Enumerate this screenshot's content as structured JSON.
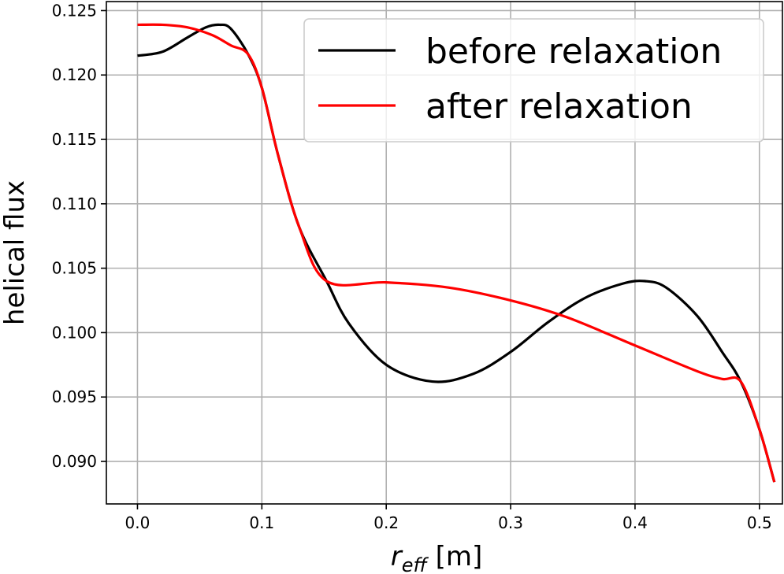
{
  "chart_data": {
    "type": "line",
    "xlabel": {
      "main": "r",
      "sub": "eff",
      "unit": " [m]"
    },
    "ylabel": "helical flux",
    "xlim": [
      -0.025,
      0.5185
    ],
    "ylim": [
      0.0867,
      0.1257
    ],
    "xticks": [
      0.0,
      0.1,
      0.2,
      0.3,
      0.4,
      0.5
    ],
    "xtick_labels": [
      "0.0",
      "0.1",
      "0.2",
      "0.3",
      "0.4",
      "0.5"
    ],
    "yticks": [
      0.09,
      0.095,
      0.1,
      0.105,
      0.11,
      0.115,
      0.12,
      0.125
    ],
    "ytick_labels": [
      "0.090",
      "0.095",
      "0.100",
      "0.105",
      "0.110",
      "0.115",
      "0.120",
      "0.125"
    ],
    "grid": true,
    "legend_position": "top-right",
    "series": [
      {
        "name": "before relaxation",
        "color": "#000000",
        "x": [
          0.0,
          0.02,
          0.04,
          0.055,
          0.066,
          0.075,
          0.089,
          0.1,
          0.113,
          0.13,
          0.152,
          0.17,
          0.2,
          0.237,
          0.27,
          0.3,
          0.33,
          0.36,
          0.39,
          0.408,
          0.425,
          0.45,
          0.47,
          0.485,
          0.5,
          0.512
        ],
        "y": [
          0.1215,
          0.1218,
          0.1229,
          0.1237,
          0.1239,
          0.1236,
          0.1216,
          0.119,
          0.1138,
          0.1082,
          0.104,
          0.1007,
          0.0975,
          0.0962,
          0.0968,
          0.0985,
          0.1008,
          0.1027,
          0.1038,
          0.104,
          0.1035,
          0.1013,
          0.0985,
          0.0962,
          0.0925,
          0.0884
        ]
      },
      {
        "name": "after relaxation",
        "color": "#ff0000",
        "x": [
          0.0,
          0.02,
          0.04,
          0.06,
          0.075,
          0.089,
          0.1,
          0.113,
          0.13,
          0.152,
          0.2,
          0.25,
          0.3,
          0.345,
          0.4,
          0.45,
          0.47,
          0.485,
          0.5,
          0.512
        ],
        "y": [
          0.1239,
          0.1239,
          0.1237,
          0.1231,
          0.1223,
          0.1216,
          0.119,
          0.1138,
          0.1082,
          0.104,
          0.1039,
          0.1035,
          0.1025,
          0.1012,
          0.099,
          0.097,
          0.0964,
          0.0962,
          0.0925,
          0.0884
        ]
      }
    ]
  }
}
